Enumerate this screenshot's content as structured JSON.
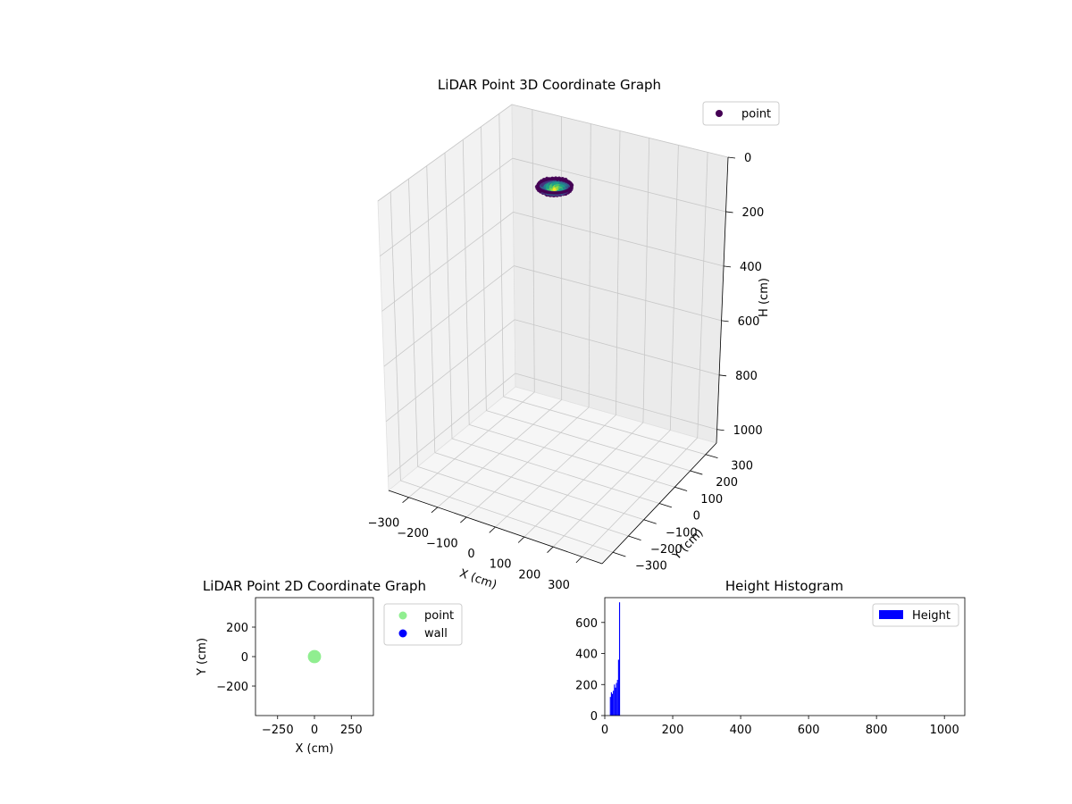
{
  "chart_data": [
    {
      "type": "scatter",
      "projection": "3d",
      "title": "LiDAR Point 3D Coordinate Graph",
      "xlabel": "X (cm)",
      "ylabel": "Y (cm)",
      "zlabel": "H (cm)",
      "x_ticks": [
        -300,
        -200,
        -100,
        0,
        100,
        200,
        300
      ],
      "y_ticks": [
        -300,
        -200,
        -100,
        0,
        100,
        200,
        300
      ],
      "z_ticks": [
        0,
        200,
        400,
        600,
        800,
        1000
      ],
      "xlim": [
        -370,
        370
      ],
      "ylim": [
        -370,
        370
      ],
      "zlim": [
        1050,
        0
      ],
      "z_axis_inverted": true,
      "grid": true,
      "legend": {
        "position": "top-right",
        "entries": [
          {
            "name": "point",
            "color": "#440154"
          }
        ]
      },
      "colormap": "viridis",
      "cluster": {
        "center_x": 0,
        "center_y": 0,
        "radius": 45,
        "height_min": 10,
        "height_max": 50
      }
    },
    {
      "type": "scatter",
      "title": "LiDAR Point 2D Coordinate Graph",
      "xlabel": "X (cm)",
      "ylabel": "Y (cm)",
      "x_ticks": [
        -250,
        0,
        250
      ],
      "y_ticks": [
        -200,
        0,
        200
      ],
      "xlim": [
        -400,
        400
      ],
      "ylim": [
        -400,
        400
      ],
      "legend": {
        "position": "outside-right",
        "entries": [
          {
            "name": "point",
            "color": "#90ee90"
          },
          {
            "name": "wall",
            "color": "#0000ff"
          }
        ]
      },
      "series": [
        {
          "name": "point",
          "color": "#90ee90",
          "center": [
            0,
            0
          ],
          "radius": 45
        },
        {
          "name": "wall",
          "color": "#0000ff",
          "points": []
        }
      ]
    },
    {
      "type": "bar",
      "subtype": "histogram",
      "title": "Height Histogram",
      "xlabel": "",
      "ylabel": "",
      "x_ticks": [
        0,
        200,
        400,
        600,
        800,
        1000
      ],
      "y_ticks": [
        0,
        200,
        400,
        600
      ],
      "xlim": [
        0,
        1060
      ],
      "ylim": [
        0,
        760
      ],
      "color": "#0000ff",
      "legend": {
        "position": "top-right",
        "entries": [
          {
            "name": "Height",
            "color": "#0000ff"
          }
        ]
      },
      "bins": [
        {
          "x0": 15,
          "x1": 18,
          "count": 120
        },
        {
          "x0": 18,
          "x1": 21,
          "count": 150
        },
        {
          "x0": 21,
          "x1": 24,
          "count": 140
        },
        {
          "x0": 24,
          "x1": 27,
          "count": 160
        },
        {
          "x0": 27,
          "x1": 30,
          "count": 200
        },
        {
          "x0": 30,
          "x1": 33,
          "count": 180
        },
        {
          "x0": 33,
          "x1": 36,
          "count": 210
        },
        {
          "x0": 36,
          "x1": 39,
          "count": 230
        },
        {
          "x0": 39,
          "x1": 42,
          "count": 360
        },
        {
          "x0": 42,
          "x1": 45,
          "count": 730
        }
      ]
    }
  ]
}
